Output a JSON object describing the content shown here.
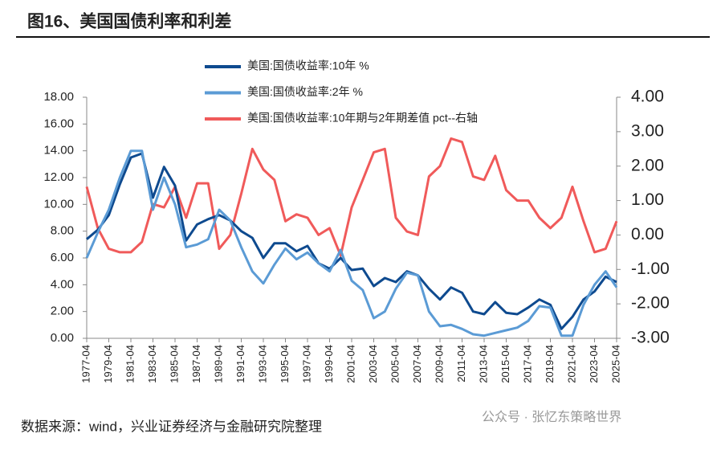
{
  "title": "图16、美国国债利率和利差",
  "source": "数据来源：wind，兴业证券经济与金融研究院整理",
  "watermark": "公众号 · 张忆东策略世界",
  "chart_data": {
    "type": "line",
    "x": [
      "1977-04",
      "1978-04",
      "1979-04",
      "1980-04",
      "1981-04",
      "1982-04",
      "1983-04",
      "1984-04",
      "1985-04",
      "1986-04",
      "1987-04",
      "1988-04",
      "1989-04",
      "1990-04",
      "1991-04",
      "1992-04",
      "1993-04",
      "1994-04",
      "1995-04",
      "1996-04",
      "1997-04",
      "1998-04",
      "1999-04",
      "2000-04",
      "2001-04",
      "2002-04",
      "2003-04",
      "2004-04",
      "2005-04",
      "2006-04",
      "2007-04",
      "2008-04",
      "2009-04",
      "2010-04",
      "2011-04",
      "2012-04",
      "2013-04",
      "2014-04",
      "2015-04",
      "2016-04",
      "2017-04",
      "2018-04",
      "2019-04",
      "2020-04",
      "2021-04",
      "2022-04",
      "2023-04",
      "2024-04",
      "2025-04"
    ],
    "xticks": [
      "1977-04",
      "1979-04",
      "1981-04",
      "1983-04",
      "1985-04",
      "1987-04",
      "1989-04",
      "1991-04",
      "1993-04",
      "1995-04",
      "1997-04",
      "1999-04",
      "2001-04",
      "2003-04",
      "2005-04",
      "2007-04",
      "2009-04",
      "2011-04",
      "2013-04",
      "2015-04",
      "2017-04",
      "2019-04",
      "2021-04",
      "2023-04",
      "2025-04"
    ],
    "series": [
      {
        "name": "美国:国债收益率:10年 %",
        "color": "#0e4a8f",
        "axis": "y",
        "values": [
          7.4,
          8.1,
          9.2,
          11.5,
          13.5,
          13.8,
          10.5,
          12.8,
          11.4,
          7.3,
          8.5,
          8.9,
          9.2,
          8.8,
          8.0,
          7.5,
          6.0,
          7.1,
          7.1,
          6.5,
          6.9,
          5.6,
          5.2,
          6.0,
          5.1,
          5.2,
          3.9,
          4.5,
          4.2,
          5.0,
          4.7,
          3.7,
          2.9,
          3.8,
          3.4,
          2.0,
          1.8,
          2.7,
          1.9,
          1.8,
          2.3,
          2.9,
          2.5,
          0.7,
          1.6,
          2.9,
          3.5,
          4.6,
          4.2
        ]
      },
      {
        "name": "美国:国债收益率:2年 %",
        "color": "#5b9bd5",
        "axis": "y",
        "values": [
          6.0,
          7.9,
          9.6,
          12.0,
          14.0,
          14.0,
          9.6,
          12.0,
          10.0,
          6.8,
          7.0,
          7.4,
          9.6,
          8.8,
          6.8,
          5.0,
          4.1,
          5.5,
          6.7,
          5.9,
          6.4,
          5.6,
          5.0,
          6.6,
          4.3,
          3.6,
          1.5,
          2.0,
          3.7,
          4.9,
          4.7,
          2.0,
          0.9,
          1.0,
          0.7,
          0.3,
          0.2,
          0.4,
          0.6,
          0.8,
          1.3,
          2.4,
          2.3,
          0.2,
          0.2,
          2.5,
          4.0,
          5.0,
          3.8
        ]
      },
      {
        "name": "美国:国债收益率:10年期与2年期差值 pct--右轴",
        "color": "#f05a5a",
        "axis": "y2",
        "values": [
          1.4,
          0.2,
          -0.4,
          -0.5,
          -0.5,
          -0.2,
          0.9,
          0.8,
          1.4,
          0.5,
          1.5,
          1.5,
          -0.4,
          0.0,
          1.2,
          2.5,
          1.9,
          1.6,
          0.4,
          0.6,
          0.5,
          0.0,
          0.2,
          -0.6,
          0.8,
          1.6,
          2.4,
          2.5,
          0.5,
          0.1,
          0.0,
          1.7,
          2.0,
          2.8,
          2.7,
          1.7,
          1.6,
          2.3,
          1.3,
          1.0,
          1.0,
          0.5,
          0.2,
          0.5,
          1.4,
          0.4,
          -0.5,
          -0.4,
          0.4
        ]
      }
    ],
    "ylim": [
      0,
      18
    ],
    "yticks": [
      {
        "value": 0,
        "label": "0.00"
      },
      {
        "value": 2,
        "label": "2.00"
      },
      {
        "value": 4,
        "label": "4.00"
      },
      {
        "value": 6,
        "label": "6.00"
      },
      {
        "value": 8,
        "label": "8.00"
      },
      {
        "value": 10,
        "label": "10.00"
      },
      {
        "value": 12,
        "label": "12.00"
      },
      {
        "value": 14,
        "label": "14.00"
      },
      {
        "value": 16,
        "label": "16.00"
      },
      {
        "value": 18,
        "label": "18.00"
      }
    ],
    "y2lim": [
      -3,
      4
    ],
    "y2ticks": [
      {
        "value": -3,
        "label": "-3.00"
      },
      {
        "value": -2,
        "label": "-2.00"
      },
      {
        "value": -1,
        "label": "-1.00"
      },
      {
        "value": 0,
        "label": "0.00"
      },
      {
        "value": 1,
        "label": "1.00"
      },
      {
        "value": 2,
        "label": "2.00"
      },
      {
        "value": 3,
        "label": "3.00"
      },
      {
        "value": 4,
        "label": "4.00"
      }
    ]
  }
}
